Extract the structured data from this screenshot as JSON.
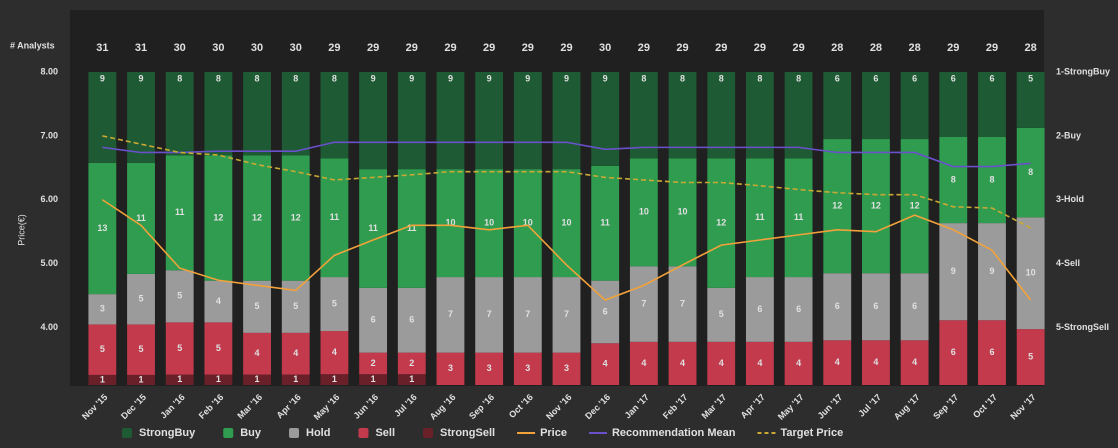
{
  "chart_data": {
    "type": "bar",
    "stacked": "percent",
    "categories": [
      "Nov '15",
      "Dec '15",
      "Jan '16",
      "Feb '16",
      "Mar '16",
      "Apr '16",
      "May '16",
      "Jun '16",
      "Jul '16",
      "Aug '16",
      "Sep '16",
      "Oct '16",
      "Nov '16",
      "Dec '16",
      "Jan '17",
      "Feb '17",
      "Mar '17",
      "Apr '17",
      "May '17",
      "Jun '17",
      "Jul '17",
      "Aug '17",
      "Sep '17",
      "Oct '17",
      "Nov '17"
    ],
    "analysts": {
      "label": "# Analysts",
      "values": [
        31,
        31,
        30,
        30,
        30,
        30,
        29,
        29,
        29,
        29,
        29,
        29,
        29,
        30,
        29,
        29,
        29,
        29,
        29,
        28,
        28,
        28,
        29,
        29,
        28
      ]
    },
    "series": [
      {
        "name": "StrongBuy",
        "type": "bar",
        "color": "#1e5a33",
        "values": [
          9,
          9,
          8,
          8,
          8,
          8,
          8,
          9,
          9,
          9,
          9,
          9,
          9,
          9,
          8,
          8,
          8,
          8,
          8,
          6,
          6,
          6,
          6,
          6,
          5
        ]
      },
      {
        "name": "Buy",
        "type": "bar",
        "color": "#2f9c50",
        "values": [
          13,
          11,
          11,
          12,
          12,
          12,
          11,
          11,
          11,
          10,
          10,
          10,
          10,
          11,
          10,
          10,
          12,
          11,
          11,
          12,
          12,
          12,
          8,
          8,
          8
        ]
      },
      {
        "name": "Hold",
        "type": "bar",
        "color": "#9b9b9b",
        "values": [
          3,
          5,
          5,
          4,
          5,
          5,
          5,
          6,
          6,
          7,
          7,
          7,
          7,
          6,
          7,
          7,
          5,
          6,
          6,
          6,
          6,
          6,
          9,
          9,
          10
        ]
      },
      {
        "name": "Sell",
        "type": "bar",
        "color": "#c23a4c",
        "values": [
          5,
          5,
          5,
          5,
          4,
          4,
          4,
          2,
          2,
          3,
          3,
          3,
          3,
          4,
          4,
          4,
          4,
          4,
          4,
          4,
          4,
          4,
          6,
          6,
          5
        ]
      },
      {
        "name": "StrongSell",
        "type": "bar",
        "color": "#6a2029",
        "values": [
          1,
          1,
          1,
          1,
          1,
          1,
          1,
          1,
          1,
          0,
          0,
          0,
          0,
          0,
          0,
          0,
          0,
          0,
          0,
          0,
          0,
          0,
          0,
          0,
          0
        ]
      },
      {
        "name": "Price",
        "type": "line",
        "color": "#f2a23a",
        "values": [
          6.0,
          5.6,
          4.93,
          4.74,
          4.66,
          4.58,
          5.13,
          5.37,
          5.6,
          5.6,
          5.53,
          5.6,
          4.98,
          4.43,
          4.66,
          4.98,
          5.29,
          5.37,
          5.45,
          5.53,
          5.5,
          5.76,
          5.53,
          5.21,
          4.43
        ]
      },
      {
        "name": "Recommendation Mean",
        "type": "line",
        "axis": "y2",
        "color": "#6b50cc",
        "values": [
          2.18,
          2.26,
          2.26,
          2.24,
          2.24,
          2.24,
          2.1,
          2.1,
          2.1,
          2.1,
          2.1,
          2.1,
          2.1,
          2.21,
          2.18,
          2.18,
          2.18,
          2.18,
          2.18,
          2.26,
          2.26,
          2.26,
          2.48,
          2.48,
          2.43
        ]
      },
      {
        "name": "Target Price",
        "type": "line",
        "dashed": true,
        "color": "#c9a934",
        "values": [
          7.0,
          6.87,
          6.74,
          6.7,
          6.55,
          6.44,
          6.31,
          6.35,
          6.39,
          6.44,
          6.44,
          6.44,
          6.44,
          6.35,
          6.31,
          6.27,
          6.27,
          6.22,
          6.16,
          6.11,
          6.08,
          6.08,
          5.89,
          5.87,
          5.56
        ]
      }
    ],
    "ylabel": "Price(€)",
    "ylim": [
      3.1,
      8.0
    ],
    "yticks": [
      {
        "value": 8,
        "label": "8.00"
      },
      {
        "value": 7,
        "label": "7.00"
      },
      {
        "value": 6,
        "label": "6.00"
      },
      {
        "value": 5,
        "label": "5.00"
      },
      {
        "value": 4,
        "label": "4.00"
      }
    ],
    "y2lim": [
      5.9,
      1.0
    ],
    "y2ticks": [
      {
        "value": 1,
        "label": "1-StrongBuy"
      },
      {
        "value": 2,
        "label": "2-Buy"
      },
      {
        "value": 3,
        "label": "3-Hold"
      },
      {
        "value": 4,
        "label": "4-Sell"
      },
      {
        "value": 5,
        "label": "5-StrongSell"
      }
    ]
  }
}
